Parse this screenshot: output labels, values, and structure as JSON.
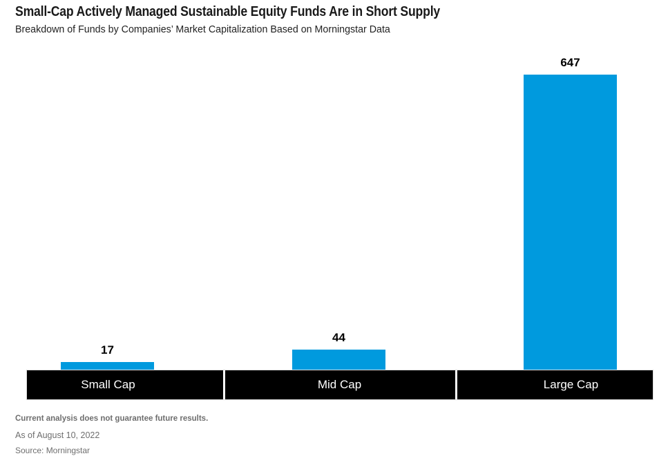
{
  "header": {
    "title": "Small-Cap Actively Managed Sustainable Equity Funds Are in Short Supply",
    "subtitle": "Breakdown of Funds by Companies’ Market Capitalization Based on Morningstar Data"
  },
  "chart_data": {
    "type": "bar",
    "title": "Small-Cap Actively Managed Sustainable Equity Funds Are in Short Supply",
    "subtitle": "Breakdown of Funds by Companies’ Market Capitalization Based on Morningstar Data",
    "categories": [
      "Small Cap",
      "Mid Cap",
      "Large Cap"
    ],
    "values": [
      17,
      44,
      647
    ],
    "xlabel": "",
    "ylabel": "",
    "ylim": [
      0,
      647
    ],
    "bar_color": "#009ade",
    "axis_band_color": "#000000",
    "axis_label_color": "#ffffff",
    "value_label_color": "#000000",
    "gridlines": false,
    "legend": false,
    "value_labels": true
  },
  "footer": {
    "disclaimer": "Current analysis does not guarantee future results.",
    "as_of": "As of August 10, 2022",
    "source": "Source: Morningstar"
  }
}
